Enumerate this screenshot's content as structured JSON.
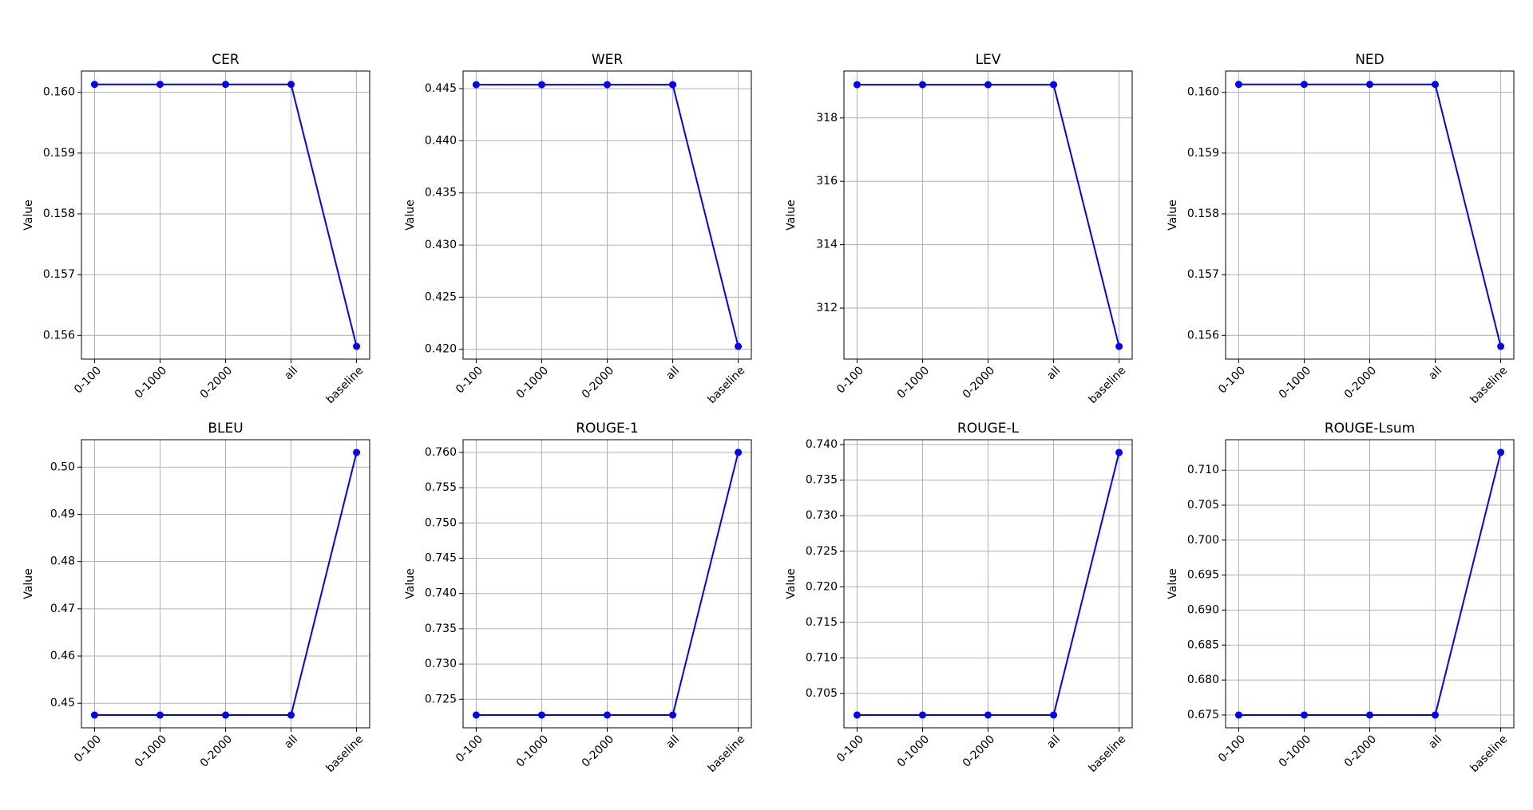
{
  "chart_data": [
    {
      "type": "line",
      "title": "CER",
      "ylabel": "Value",
      "categories": [
        "0-100",
        "0-1000",
        "0-2000",
        "all",
        "baseline"
      ],
      "values": [
        0.16013,
        0.16013,
        0.16013,
        0.16013,
        0.15582
      ],
      "color": "#0000ff",
      "ylim": [
        0.15561,
        0.16035
      ],
      "yticks": [
        0.156,
        0.157,
        0.158,
        0.159,
        {
          "value": 0.16,
          "label": "0.160"
        }
      ],
      "grid": true
    },
    {
      "type": "line",
      "title": "WER",
      "ylabel": "Value",
      "categories": [
        "0-100",
        "0-1000",
        "0-2000",
        "all",
        "baseline"
      ],
      "values": [
        0.44538,
        0.44538,
        0.44538,
        0.44538,
        0.42028
      ],
      "color": "#0000ff",
      "ylim": [
        0.41906,
        0.44669
      ],
      "yticks": [
        {
          "value": 0.42,
          "label": "0.420"
        },
        0.425,
        {
          "value": 0.43,
          "label": "0.430"
        },
        0.435,
        {
          "value": 0.44,
          "label": "0.440"
        },
        0.445
      ],
      "grid": true
    },
    {
      "type": "line",
      "title": "LEV",
      "ylabel": "Value",
      "categories": [
        "0-100",
        "0-1000",
        "0-2000",
        "all",
        "baseline"
      ],
      "values": [
        319.05,
        319.05,
        319.05,
        319.05,
        310.79
      ],
      "color": "#0000ff",
      "ylim": [
        310.39,
        319.48
      ],
      "yticks": [
        312,
        314,
        316,
        318
      ],
      "grid": true
    },
    {
      "type": "line",
      "title": "NED",
      "ylabel": "Value",
      "categories": [
        "0-100",
        "0-1000",
        "0-2000",
        "all",
        "baseline"
      ],
      "values": [
        0.16013,
        0.16013,
        0.16013,
        0.16013,
        0.15582
      ],
      "color": "#0000ff",
      "ylim": [
        0.15561,
        0.16035
      ],
      "yticks": [
        0.156,
        0.157,
        0.158,
        0.159,
        {
          "value": 0.16,
          "label": "0.160"
        }
      ],
      "grid": true
    },
    {
      "type": "line",
      "title": "BLEU",
      "ylabel": "Value",
      "categories": [
        "0-100",
        "0-1000",
        "0-2000",
        "all",
        "baseline"
      ],
      "values": [
        0.4475,
        0.4475,
        0.4475,
        0.4475,
        0.5031
      ],
      "color": "#0000ff",
      "ylim": [
        0.4448,
        0.5058
      ],
      "yticks": [
        {
          "value": 0.45,
          "label": "0.45"
        },
        0.46,
        0.47,
        0.48,
        0.49,
        {
          "value": 0.5,
          "label": "0.50"
        }
      ],
      "grid": true
    },
    {
      "type": "line",
      "title": "ROUGE-1",
      "ylabel": "Value",
      "categories": [
        "0-100",
        "0-1000",
        "0-2000",
        "all",
        "baseline"
      ],
      "values": [
        0.72277,
        0.72277,
        0.72277,
        0.72277,
        0.76
      ],
      "color": "#0000ff",
      "ylim": [
        0.72096,
        0.7618
      ],
      "yticks": [
        0.725,
        {
          "value": 0.73,
          "label": "0.730"
        },
        0.735,
        {
          "value": 0.74,
          "label": "0.740"
        },
        0.745,
        {
          "value": 0.75,
          "label": "0.750"
        },
        0.755,
        {
          "value": 0.76,
          "label": "0.760"
        }
      ],
      "grid": true
    },
    {
      "type": "line",
      "title": "ROUGE-L",
      "ylabel": "Value",
      "categories": [
        "0-100",
        "0-1000",
        "0-2000",
        "all",
        "baseline"
      ],
      "values": [
        0.70196,
        0.70196,
        0.70196,
        0.70196,
        0.73889
      ],
      "color": "#0000ff",
      "ylim": [
        0.70016,
        0.74069
      ],
      "yticks": [
        0.705,
        {
          "value": 0.71,
          "label": "0.710"
        },
        0.715,
        {
          "value": 0.72,
          "label": "0.720"
        },
        0.725,
        {
          "value": 0.73,
          "label": "0.730"
        },
        0.735,
        {
          "value": 0.74,
          "label": "0.740"
        }
      ],
      "grid": true
    },
    {
      "type": "line",
      "title": "ROUGE-Lsum",
      "ylabel": "Value",
      "categories": [
        "0-100",
        "0-1000",
        "0-2000",
        "all",
        "baseline"
      ],
      "values": [
        0.675,
        0.675,
        0.675,
        0.675,
        0.71255
      ],
      "color": "#0000ff",
      "ylim": [
        0.67317,
        0.71436
      ],
      "yticks": [
        0.675,
        {
          "value": 0.68,
          "label": "0.680"
        },
        0.685,
        {
          "value": 0.69,
          "label": "0.690"
        },
        0.695,
        {
          "value": 0.7,
          "label": "0.700"
        },
        0.705,
        {
          "value": 0.71,
          "label": "0.710"
        }
      ],
      "grid": true
    }
  ]
}
